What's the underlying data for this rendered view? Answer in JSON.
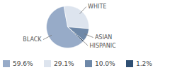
{
  "chart_data": {
    "type": "pie",
    "categories": [
      "BLACK",
      "WHITE",
      "ASIAN",
      "HISPANIC"
    ],
    "values": [
      59.6,
      29.1,
      10.0,
      1.2
    ],
    "value_labels": [
      "59.6%",
      "29.1%",
      "10.0%",
      "1.2%"
    ],
    "colors": [
      "#97abc8",
      "#dde4ee",
      "#6e88a8",
      "#2f4f73"
    ],
    "legend": "bottom"
  }
}
